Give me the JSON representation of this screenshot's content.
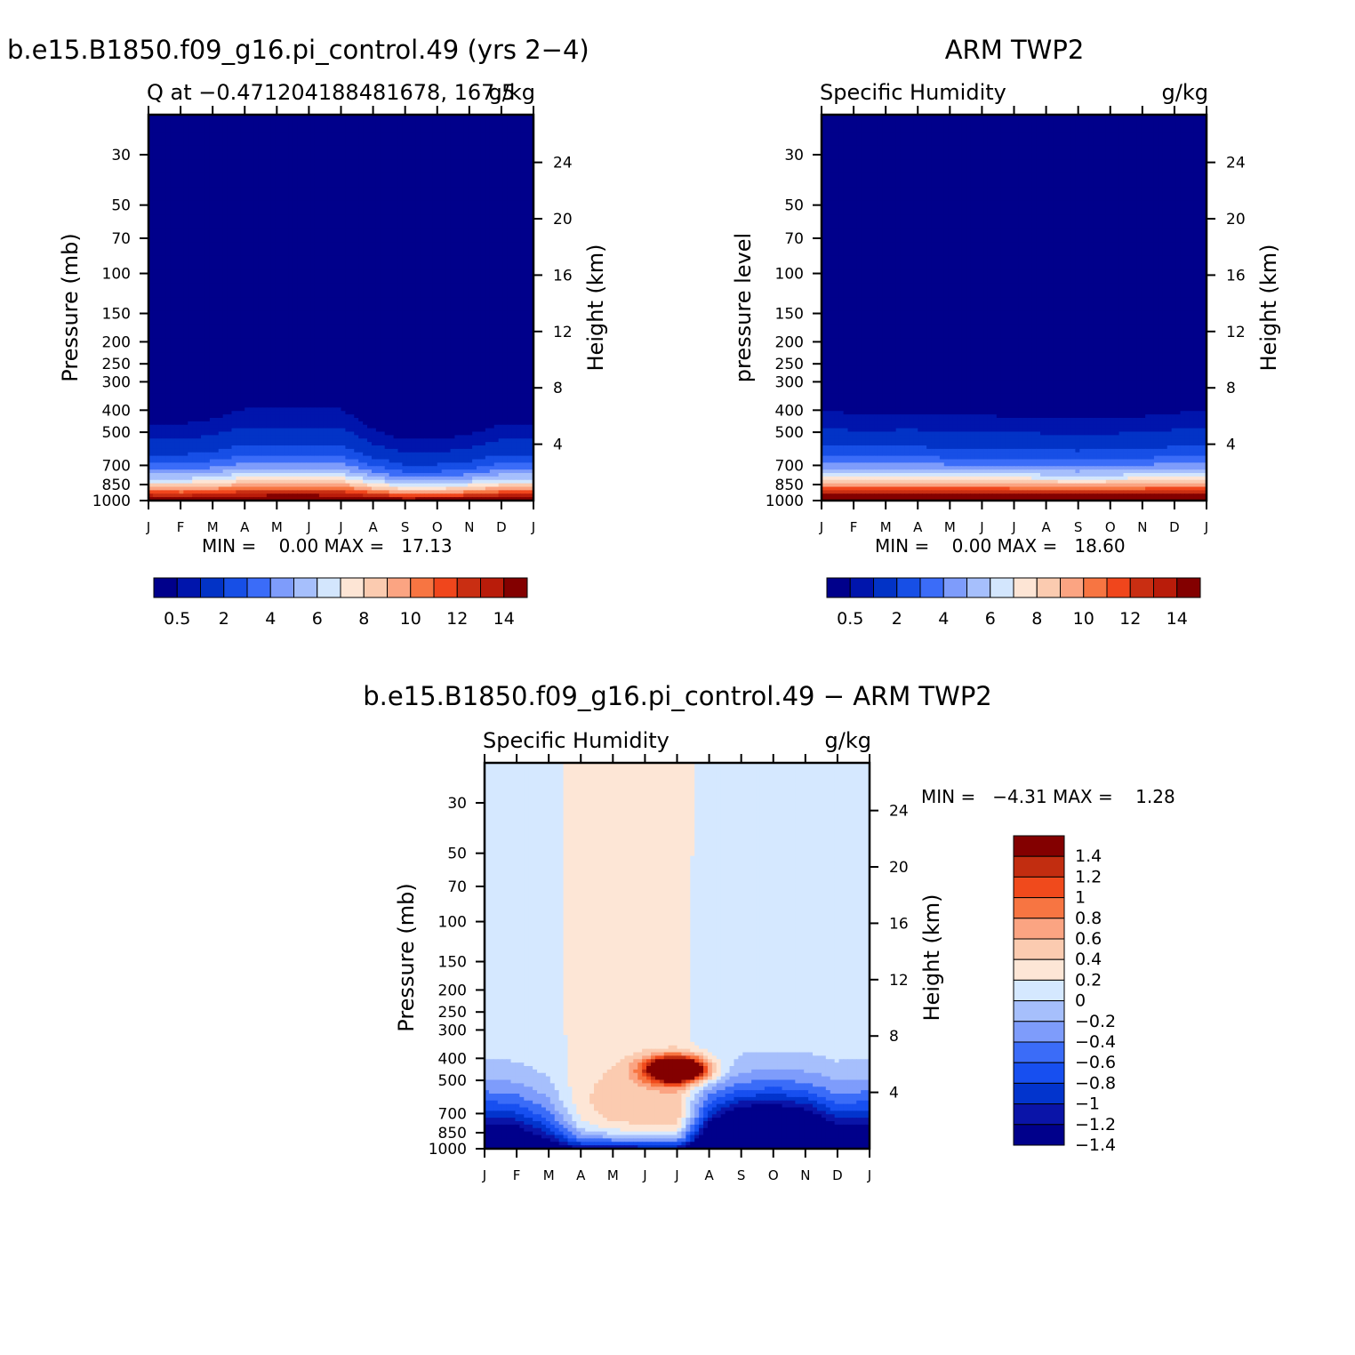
{
  "colors": {
    "seq": [
      "#00008b",
      "#0015ac",
      "#0233c6",
      "#174fe6",
      "#3b6cf8",
      "#7e9cfb",
      "#a6bffc",
      "#d3e6fd",
      "#fde5d5",
      "#fbcbb0",
      "#fba482",
      "#f77542",
      "#f0461c",
      "#c92e12",
      "#b91c0a",
      "#830000"
    ],
    "diff": [
      "#00008b",
      "#0a14a8",
      "#0234cd",
      "#174ff0",
      "#3b6cf8",
      "#7e9cfb",
      "#a6bffc",
      "#d5e8ff",
      "#fde6d6",
      "#fbcbb0",
      "#fba482",
      "#f77542",
      "#f04a1c",
      "#c22d10",
      "#830000"
    ]
  },
  "chart_data": [
    {
      "type": "heatmap",
      "panel": "model",
      "title": "b.e15.B1850.f09_g16.pi_control.49 (yrs 2−4)",
      "left_label": "Q at −0.471204188481678, 167.5",
      "right_label": "g/kg",
      "ylabel": "Pressure (mb)",
      "y2label": "Height (km)",
      "months": [
        "J",
        "F",
        "M",
        "A",
        "M",
        "J",
        "J",
        "A",
        "S",
        "O",
        "N",
        "D",
        "J"
      ],
      "pressure_ticks": [
        30,
        50,
        70,
        100,
        150,
        200,
        250,
        300,
        400,
        500,
        700,
        850,
        1000
      ],
      "height_ticks": [
        4,
        8,
        12,
        16,
        20,
        24
      ],
      "min_max": "MIN =    0.00 MAX =   17.13",
      "colorbar_levels": [
        0.5,
        1,
        2,
        3,
        4,
        5,
        6,
        7,
        8,
        9,
        10,
        11,
        12,
        13,
        14
      ],
      "colorbar_labels": [
        "0.5",
        "2",
        "4",
        "6",
        "8",
        "10",
        "12",
        "14"
      ],
      "surface_value_by_month": [
        16.5,
        16.3,
        16.6,
        17.0,
        17.1,
        17.1,
        17.0,
        16.2,
        15.4,
        15.5,
        15.9,
        16.5,
        16.5
      ],
      "moist_scale_height_km_by_month": [
        1.55,
        1.55,
        1.65,
        1.85,
        1.85,
        1.85,
        1.85,
        1.45,
        1.25,
        1.25,
        1.35,
        1.55,
        1.55
      ]
    },
    {
      "type": "heatmap",
      "panel": "obs",
      "title": "ARM TWP2",
      "left_label": "Specific Humidity",
      "right_label": "g/kg",
      "ylabel": "pressure level",
      "y2label": "Height (km)",
      "months": [
        "J",
        "F",
        "M",
        "A",
        "M",
        "J",
        "J",
        "A",
        "S",
        "O",
        "N",
        "D",
        "J"
      ],
      "pressure_ticks": [
        30,
        50,
        70,
        100,
        150,
        200,
        250,
        300,
        400,
        500,
        700,
        850,
        1000
      ],
      "height_ticks": [
        4,
        8,
        12,
        16,
        20,
        24
      ],
      "min_max": "MIN =    0.00 MAX =   18.60",
      "colorbar_levels": [
        0.5,
        1,
        2,
        3,
        4,
        5,
        6,
        7,
        8,
        9,
        10,
        11,
        12,
        13,
        14
      ],
      "colorbar_labels": [
        "0.5",
        "2",
        "4",
        "6",
        "8",
        "10",
        "12",
        "14"
      ],
      "surface_value_by_month": [
        18.4,
        18.3,
        18.4,
        18.5,
        18.6,
        18.5,
        18.4,
        18.4,
        18.3,
        18.3,
        18.4,
        18.5,
        18.4
      ],
      "moist_scale_height_km_by_month": [
        1.75,
        1.72,
        1.72,
        1.72,
        1.66,
        1.66,
        1.66,
        1.63,
        1.6,
        1.63,
        1.66,
        1.72,
        1.75
      ]
    },
    {
      "type": "heatmap",
      "panel": "difference",
      "title": "b.e15.B1850.f09_g16.pi_control.49 − ARM TWP2",
      "left_label": "Specific Humidity",
      "right_label": "g/kg",
      "ylabel": "Pressure (mb)",
      "y2label": "Height (km)",
      "months": [
        "J",
        "F",
        "M",
        "A",
        "M",
        "J",
        "J",
        "A",
        "S",
        "O",
        "N",
        "D",
        "J"
      ],
      "pressure_ticks": [
        30,
        50,
        70,
        100,
        150,
        200,
        250,
        300,
        400,
        500,
        700,
        850,
        1000
      ],
      "height_ticks": [
        4,
        8,
        12,
        16,
        20,
        24
      ],
      "min_max": "MIN =   −4.31 MAX =    1.28",
      "colorbar_levels": [
        -1.4,
        -1.2,
        -1,
        -0.8,
        -0.6,
        -0.4,
        -0.2,
        0,
        0.2,
        0.4,
        0.6,
        0.8,
        1,
        1.2,
        1.4
      ],
      "colorbar_labels": [
        "1.4",
        "1.2",
        "1",
        "0.8",
        "0.6",
        "0.4",
        "0.2",
        "0",
        "−0.2",
        "−0.4",
        "−0.6",
        "−0.8",
        "−1",
        "−1.2",
        "−1.4"
      ],
      "feature": "positive anomaly near 500 mb in May–July (max 1.28), negative below 300 mb elsewhere (min −4.31)"
    }
  ]
}
